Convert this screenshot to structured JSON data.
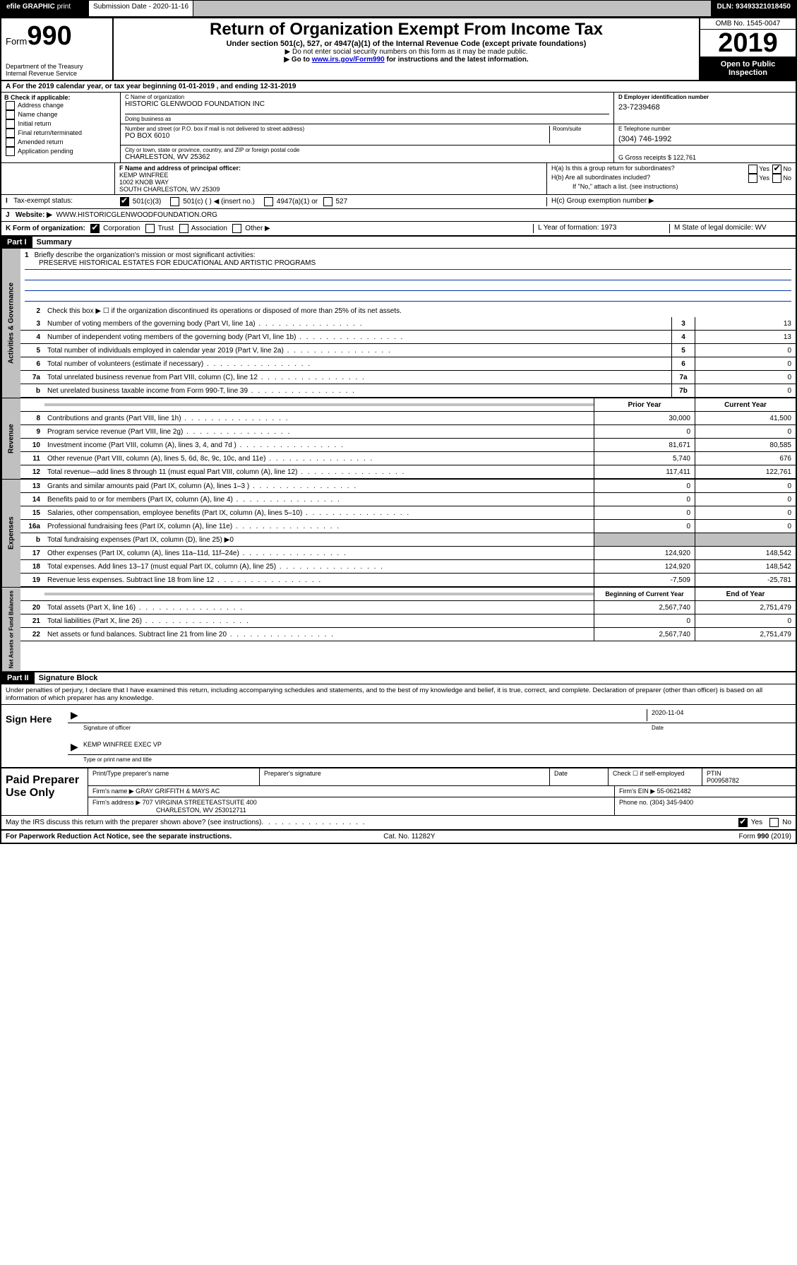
{
  "topbar": {
    "efile": "efile GRAPHIC",
    "print": "print",
    "submission_label": "Submission Date - 2020-11-16",
    "dln": "DLN: 93493321018450"
  },
  "header": {
    "form_prefix": "Form",
    "form_number": "990",
    "title": "Return of Organization Exempt From Income Tax",
    "subtitle": "Under section 501(c), 527, or 4947(a)(1) of the Internal Revenue Code (except private foundations)",
    "note1": "▶ Do not enter social security numbers on this form as it may be made public.",
    "note2_pre": "▶ Go to ",
    "note2_link": "www.irs.gov/Form990",
    "note2_post": " for instructions and the latest information.",
    "dept1": "Department of the Treasury",
    "dept2": "Internal Revenue Service",
    "omb": "OMB No. 1545-0047",
    "year": "2019",
    "open": "Open to Public Inspection"
  },
  "period": {
    "text": "A For the 2019 calendar year, or tax year beginning 01-01-2019    , and ending 12-31-2019"
  },
  "sectionB": {
    "header": "B Check if applicable:",
    "items": [
      "Address change",
      "Name change",
      "Initial return",
      "Final return/terminated",
      "Amended return",
      "Application pending"
    ]
  },
  "sectionC": {
    "name_label": "C Name of organization",
    "name": "HISTORIC GLENWOOD FOUNDATION INC",
    "dba_label": "Doing business as",
    "dba": "",
    "street_label": "Number and street (or P.O. box if mail is not delivered to street address)",
    "street": "PO BOX 6010",
    "room_label": "Room/suite",
    "city_label": "City or town, state or province, country, and ZIP or foreign postal code",
    "city": "CHARLESTON, WV  25362"
  },
  "sectionD": {
    "label": "D Employer identification number",
    "value": "23-7239468"
  },
  "sectionE": {
    "label": "E Telephone number",
    "value": "(304) 746-1992"
  },
  "sectionG": {
    "label": "G Gross receipts $ 122,761"
  },
  "sectionF": {
    "label": "F  Name and address of principal officer:",
    "name": "KEMP WINFREE",
    "street": "1002 KNOB WAY",
    "city": "SOUTH CHARLESTON, WV  25309"
  },
  "sectionH": {
    "ha": "H(a)  Is this a group return for subordinates?",
    "hb": "H(b)  Are all subordinates included?",
    "hb_note": "If \"No,\" attach a list. (see instructions)",
    "hc": "H(c)  Group exemption number ▶"
  },
  "taxExempt": {
    "label": "Tax-exempt status:",
    "opts": [
      "501(c)(3)",
      "501(c) (   ) ◀ (insert no.)",
      "4947(a)(1) or",
      "527"
    ]
  },
  "sectionJ": {
    "label": "J",
    "website_label": "Website: ▶",
    "website": "WWW.HISTORICGLENWOODFOUNDATION.ORG"
  },
  "sectionK": {
    "label": "K Form of organization:",
    "opts": [
      "Corporation",
      "Trust",
      "Association",
      "Other ▶"
    ],
    "L_label": "L Year of formation: 1973",
    "M_label": "M State of legal domicile: WV"
  },
  "part1": {
    "header": "Part I",
    "title": "Summary",
    "line1": "Briefly describe the organization's mission or most significant activities:",
    "mission": "PRESERVE HISTORICAL ESTATES FOR EDUCATIONAL AND ARTISTIC PROGRAMS",
    "line2": "Check this box ▶ ☐  if the organization discontinued its operations or disposed of more than 25% of its net assets.",
    "rows_single": [
      {
        "n": "3",
        "t": "Number of voting members of the governing body (Part VI, line 1a)",
        "ref": "3",
        "v": "13"
      },
      {
        "n": "4",
        "t": "Number of independent voting members of the governing body (Part VI, line 1b)",
        "ref": "4",
        "v": "13"
      },
      {
        "n": "5",
        "t": "Total number of individuals employed in calendar year 2019 (Part V, line 2a)",
        "ref": "5",
        "v": "0"
      },
      {
        "n": "6",
        "t": "Total number of volunteers (estimate if necessary)",
        "ref": "6",
        "v": "0"
      },
      {
        "n": "7a",
        "t": "Total unrelated business revenue from Part VIII, column (C), line 12",
        "ref": "7a",
        "v": "0"
      },
      {
        "n": "b",
        "t": "Net unrelated business taxable income from Form 990-T, line 39",
        "ref": "7b",
        "v": "0"
      }
    ],
    "col_headers": {
      "prior": "Prior Year",
      "current": "Current Year"
    },
    "col_headers2": {
      "prior": "Beginning of Current Year",
      "current": "End of Year"
    },
    "revenue_rows": [
      {
        "n": "8",
        "t": "Contributions and grants (Part VIII, line 1h)",
        "p": "30,000",
        "c": "41,500"
      },
      {
        "n": "9",
        "t": "Program service revenue (Part VIII, line 2g)",
        "p": "0",
        "c": "0"
      },
      {
        "n": "10",
        "t": "Investment income (Part VIII, column (A), lines 3, 4, and 7d )",
        "p": "81,671",
        "c": "80,585"
      },
      {
        "n": "11",
        "t": "Other revenue (Part VIII, column (A), lines 5, 6d, 8c, 9c, 10c, and 11e)",
        "p": "5,740",
        "c": "676"
      },
      {
        "n": "12",
        "t": "Total revenue—add lines 8 through 11 (must equal Part VIII, column (A), line 12)",
        "p": "117,411",
        "c": "122,761"
      }
    ],
    "expense_rows": [
      {
        "n": "13",
        "t": "Grants and similar amounts paid (Part IX, column (A), lines 1–3 )",
        "p": "0",
        "c": "0"
      },
      {
        "n": "14",
        "t": "Benefits paid to or for members (Part IX, column (A), line 4)",
        "p": "0",
        "c": "0"
      },
      {
        "n": "15",
        "t": "Salaries, other compensation, employee benefits (Part IX, column (A), lines 5–10)",
        "p": "0",
        "c": "0"
      },
      {
        "n": "16a",
        "t": "Professional fundraising fees (Part IX, column (A), line 11e)",
        "p": "0",
        "c": "0"
      },
      {
        "n": "b",
        "t": "Total fundraising expenses (Part IX, column (D), line 25) ▶0",
        "p": "",
        "c": "",
        "shaded": true
      },
      {
        "n": "17",
        "t": "Other expenses (Part IX, column (A), lines 11a–11d, 11f–24e)",
        "p": "124,920",
        "c": "148,542"
      },
      {
        "n": "18",
        "t": "Total expenses. Add lines 13–17 (must equal Part IX, column (A), line 25)",
        "p": "124,920",
        "c": "148,542"
      },
      {
        "n": "19",
        "t": "Revenue less expenses. Subtract line 18 from line 12",
        "p": "-7,509",
        "c": "-25,781"
      }
    ],
    "net_rows": [
      {
        "n": "20",
        "t": "Total assets (Part X, line 16)",
        "p": "2,567,740",
        "c": "2,751,479"
      },
      {
        "n": "21",
        "t": "Total liabilities (Part X, line 26)",
        "p": "0",
        "c": "0"
      },
      {
        "n": "22",
        "t": "Net assets or fund balances. Subtract line 21 from line 20",
        "p": "2,567,740",
        "c": "2,751,479"
      }
    ],
    "vlabels": {
      "gov": "Activities & Governance",
      "rev": "Revenue",
      "exp": "Expenses",
      "net": "Net Assets or Fund Balances"
    }
  },
  "part2": {
    "header": "Part II",
    "title": "Signature Block",
    "perjury": "Under penalties of perjury, I declare that I have examined this return, including accompanying schedules and statements, and to the best of my knowledge and belief, it is true, correct, and complete. Declaration of preparer (other than officer) is based on all information of which preparer has any knowledge.",
    "sign_here": "Sign Here",
    "sig_officer": "Signature of officer",
    "sig_date": "2020-11-04",
    "date_label": "Date",
    "officer_name": "KEMP WINFREE EXEC VP",
    "type_name": "Type or print name and title"
  },
  "paid": {
    "label": "Paid Preparer Use Only",
    "print_name_label": "Print/Type preparer's name",
    "sig_label": "Preparer's signature",
    "date_label": "Date",
    "check_label": "Check ☐ if self-employed",
    "ptin_label": "PTIN",
    "ptin": "P00958782",
    "firm_name_label": "Firm's name    ▶",
    "firm_name": "GRAY GRIFFITH & MAYS AC",
    "firm_ein_label": "Firm's EIN ▶",
    "firm_ein": "55-0621482",
    "firm_addr_label": "Firm's address ▶",
    "firm_addr1": "707 VIRGINIA STREETEASTSUITE 400",
    "firm_addr2": "CHARLESTON, WV  253012711",
    "phone_label": "Phone no. (304) 345-9400"
  },
  "footer": {
    "discuss": "May the IRS discuss this return with the preparer shown above? (see instructions)",
    "paperwork": "For Paperwork Reduction Act Notice, see the separate instructions.",
    "cat": "Cat. No. 11282Y",
    "form": "Form 990 (2019)"
  }
}
